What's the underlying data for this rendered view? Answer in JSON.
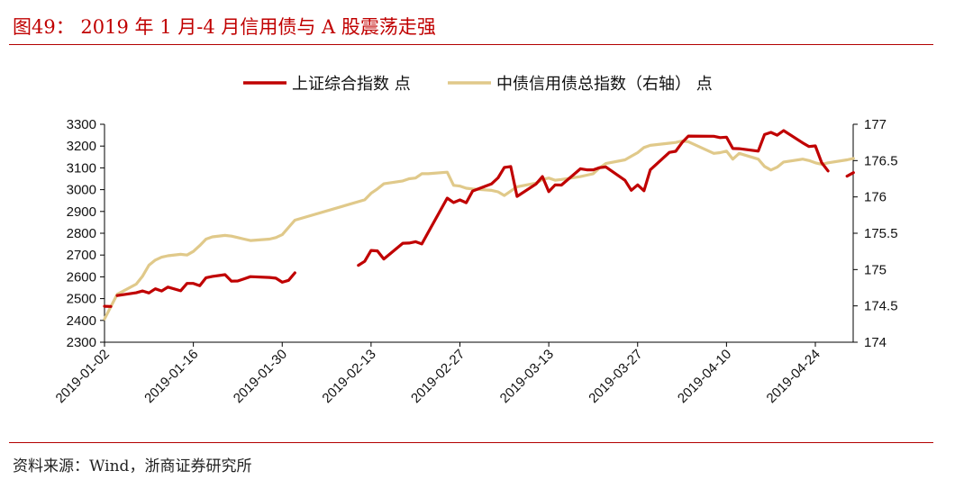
{
  "header": {
    "title": "图49： 2019 年 1 月-4 月信用债与 A 股震荡走强"
  },
  "footer": {
    "source": "资料来源：Wind，浙商证券研究所"
  },
  "colors": {
    "accent": "#c00000",
    "series_left": "#c00000",
    "series_right": "#e0c98a",
    "axis": "#000000"
  },
  "chart_data": {
    "type": "line",
    "title": "",
    "x_tick_labels": [
      "2019-01-02",
      "2019-01-16",
      "2019-01-30",
      "2019-02-13",
      "2019-02-27",
      "2019-03-13",
      "2019-03-27",
      "2019-04-10",
      "2019-04-24"
    ],
    "x_tick_dates": [
      "2019-01-02",
      "2019-01-16",
      "2019-01-30",
      "2019-02-13",
      "2019-02-27",
      "2019-03-13",
      "2019-03-27",
      "2019-04-10",
      "2019-04-24"
    ],
    "x_range": [
      "2019-01-02",
      "2019-04-30"
    ],
    "y_left": {
      "ylim": [
        2300,
        3300
      ],
      "ticks": [
        2300,
        2400,
        2500,
        2600,
        2700,
        2800,
        2900,
        3000,
        3100,
        3200,
        3300
      ]
    },
    "y_right": {
      "ylim": [
        174,
        177
      ],
      "ticks": [
        "174",
        "174.5",
        "175",
        "175.5",
        "176",
        "176.5",
        "177"
      ]
    },
    "legend_position": "top",
    "series": [
      {
        "name": "上证综合指数 点",
        "axis": "left",
        "segments": [
          {
            "x": [
              "2019-01-02",
              "2019-01-03"
            ],
            "y": [
              2465,
              2464
            ]
          },
          {
            "x": [
              "2019-01-04",
              "2019-01-07",
              "2019-01-08",
              "2019-01-09",
              "2019-01-10",
              "2019-01-11",
              "2019-01-12",
              "2019-01-14",
              "2019-01-15",
              "2019-01-16",
              "2019-01-17",
              "2019-01-18",
              "2019-01-19",
              "2019-01-21",
              "2019-01-22",
              "2019-01-23",
              "2019-01-24",
              "2019-01-25",
              "2019-01-28",
              "2019-01-29",
              "2019-01-30",
              "2019-01-31",
              "2019-02-01"
            ],
            "y": [
              2514,
              2527,
              2535,
              2526,
              2545,
              2535,
              2553,
              2536,
              2570,
              2570,
              2559,
              2596,
              2602,
              2610,
              2580,
              2581,
              2591,
              2601,
              2597,
              2594,
              2575,
              2584,
              2618
            ]
          },
          {
            "x": [
              "2019-02-11",
              "2019-02-12",
              "2019-02-13",
              "2019-02-14",
              "2019-02-15",
              "2019-02-18",
              "2019-02-19",
              "2019-02-20",
              "2019-02-21",
              "2019-02-22",
              "2019-02-25",
              "2019-02-26",
              "2019-02-27",
              "2019-02-28",
              "2019-03-01",
              "2019-03-04",
              "2019-03-05",
              "2019-03-06",
              "2019-03-07",
              "2019-03-08",
              "2019-03-11",
              "2019-03-12",
              "2019-03-13",
              "2019-03-14",
              "2019-03-15",
              "2019-03-18",
              "2019-03-19",
              "2019-03-20",
              "2019-03-21",
              "2019-03-22",
              "2019-03-25",
              "2019-03-26",
              "2019-03-27",
              "2019-03-28",
              "2019-03-29",
              "2019-04-01",
              "2019-04-02",
              "2019-04-03",
              "2019-04-04",
              "2019-04-08",
              "2019-04-09",
              "2019-04-10",
              "2019-04-11",
              "2019-04-12",
              "2019-04-15",
              "2019-04-16",
              "2019-04-17",
              "2019-04-18",
              "2019-04-19",
              "2019-04-22",
              "2019-04-23",
              "2019-04-24",
              "2019-04-25",
              "2019-04-26"
            ],
            "y": [
              2653,
              2671,
              2721,
              2719,
              2682,
              2754,
              2755,
              2761,
              2751,
              2804,
              2961,
              2941,
              2953,
              2940,
              2994,
              3027,
              3054,
              3102,
              3106,
              2969,
              3026,
              3060,
              2991,
              3022,
              3021,
              3096,
              3091,
              3091,
              3101,
              3104,
              3043,
              2997,
              3022,
              2995,
              3091,
              3171,
              3176,
              3216,
              3246,
              3245,
              3239,
              3241,
              3189,
              3188,
              3177,
              3253,
              3263,
              3250,
              3271,
              3215,
              3198,
              3201,
              3124,
              3086
            ]
          },
          {
            "x": [
              "2019-04-29",
              "2019-04-30"
            ],
            "y": [
              3062,
              3078
            ]
          }
        ]
      },
      {
        "name": "中债信用债总指数（右轴） 点",
        "axis": "right",
        "x": [
          "2019-01-02",
          "2019-01-04",
          "2019-01-07",
          "2019-01-08",
          "2019-01-09",
          "2019-01-10",
          "2019-01-11",
          "2019-01-12",
          "2019-01-14",
          "2019-01-15",
          "2019-01-16",
          "2019-01-17",
          "2019-01-18",
          "2019-01-19",
          "2019-01-21",
          "2019-01-22",
          "2019-01-23",
          "2019-01-24",
          "2019-01-25",
          "2019-01-28",
          "2019-01-29",
          "2019-01-30",
          "2019-01-31",
          "2019-02-01",
          "2019-02-12",
          "2019-02-13",
          "2019-02-14",
          "2019-02-15",
          "2019-02-18",
          "2019-02-19",
          "2019-02-20",
          "2019-02-21",
          "2019-02-22",
          "2019-02-25",
          "2019-02-26",
          "2019-02-27",
          "2019-02-28",
          "2019-03-01",
          "2019-03-04",
          "2019-03-05",
          "2019-03-06",
          "2019-03-07",
          "2019-03-08",
          "2019-03-11",
          "2019-03-12",
          "2019-03-13",
          "2019-03-14",
          "2019-03-15",
          "2019-03-18",
          "2019-03-19",
          "2019-03-20",
          "2019-03-21",
          "2019-03-22",
          "2019-03-25",
          "2019-03-26",
          "2019-03-27",
          "2019-03-28",
          "2019-03-29",
          "2019-04-01",
          "2019-04-02",
          "2019-04-03",
          "2019-04-04",
          "2019-04-08",
          "2019-04-09",
          "2019-04-10",
          "2019-04-11",
          "2019-04-12",
          "2019-04-15",
          "2019-04-16",
          "2019-04-17",
          "2019-04-18",
          "2019-04-19",
          "2019-04-22",
          "2019-04-23",
          "2019-04-24",
          "2019-04-25",
          "2019-04-26",
          "2019-04-29",
          "2019-04-30"
        ],
        "y": [
          174.32,
          174.66,
          174.8,
          174.91,
          175.06,
          175.13,
          175.17,
          175.19,
          175.21,
          175.2,
          175.25,
          175.33,
          175.42,
          175.45,
          175.47,
          175.46,
          175.44,
          175.42,
          175.4,
          175.42,
          175.44,
          175.48,
          175.58,
          175.68,
          175.96,
          176.05,
          176.11,
          176.18,
          176.22,
          176.25,
          176.26,
          176.32,
          176.32,
          176.34,
          176.16,
          176.15,
          176.12,
          176.11,
          176.09,
          176.07,
          176.02,
          176.08,
          176.14,
          176.19,
          176.24,
          176.26,
          176.23,
          176.24,
          176.28,
          176.3,
          176.32,
          176.4,
          176.46,
          176.51,
          176.56,
          176.61,
          176.68,
          176.71,
          176.74,
          176.75,
          176.77,
          176.76,
          176.6,
          176.61,
          176.63,
          176.52,
          176.6,
          176.52,
          176.42,
          176.37,
          176.41,
          176.48,
          176.52,
          176.5,
          176.47,
          176.45,
          176.47,
          176.51,
          176.53
        ]
      }
    ]
  }
}
